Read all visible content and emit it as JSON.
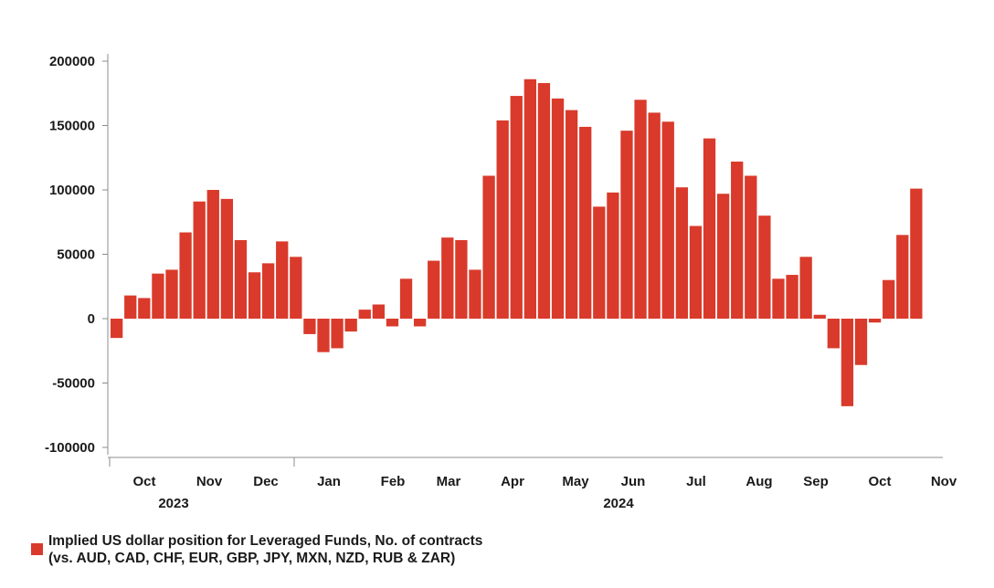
{
  "chart_data": {
    "type": "bar",
    "title": "",
    "xlabel": "",
    "ylabel": "",
    "ylim": [
      -100000,
      200000
    ],
    "yticks": [
      200000,
      150000,
      100000,
      50000,
      0,
      -50000,
      -100000
    ],
    "grid": false,
    "legend_position": "bottom-left",
    "bar_color": "#d93a2b",
    "month_labels": [
      "Oct",
      "Nov",
      "Dec",
      "Jan",
      "Feb",
      "Mar",
      "Apr",
      "May",
      "Jun",
      "Jul",
      "Aug",
      "Sep",
      "Oct",
      "Nov"
    ],
    "year_labels": [
      "2023",
      "2024"
    ],
    "series": [
      {
        "name": "Implied US dollar position for Leveraged Funds, No. of contracts (vs. AUD, CAD, CHF, EUR, GBP, JPY, MXN, NZD, RUB & ZAR)",
        "legend_lines": [
          "Implied US dollar position for Leveraged Funds, No. of contracts",
          "(vs. AUD, CAD, CHF, EUR, GBP, JPY, MXN, NZD, RUB & ZAR)"
        ],
        "values": [
          -15000,
          18000,
          16000,
          35000,
          38000,
          67000,
          91000,
          100000,
          93000,
          61000,
          36000,
          43000,
          60000,
          48000,
          -12000,
          -26000,
          -23000,
          -10000,
          7000,
          11000,
          -6000,
          31000,
          -6000,
          45000,
          63000,
          61000,
          38000,
          111000,
          154000,
          173000,
          186000,
          183000,
          171000,
          162000,
          149000,
          87000,
          98000,
          146000,
          170000,
          160000,
          153000,
          102000,
          72000,
          140000,
          97000,
          122000,
          111000,
          80000,
          31000,
          34000,
          48000,
          3000,
          -23000,
          -68000,
          -36000,
          -3000,
          30000,
          65000,
          101000
        ]
      }
    ]
  }
}
